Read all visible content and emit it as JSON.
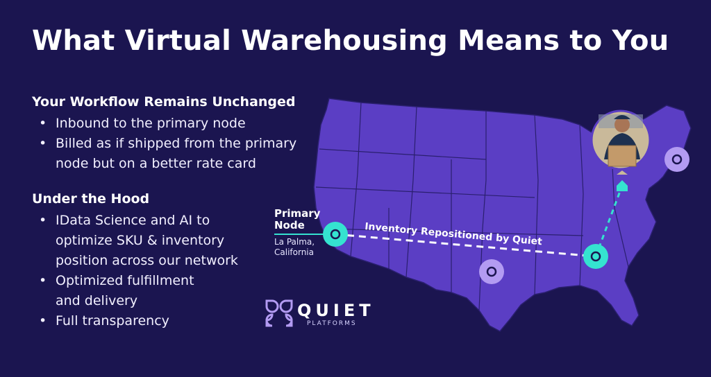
{
  "title": "What Virtual Warehousing Means to You",
  "workflow": {
    "heading": "Your Workflow Remains Unchanged",
    "items": [
      "Inbound to the primary node",
      "Billed as if shipped from the primary node but on a better rate card"
    ]
  },
  "hood": {
    "heading": "Under the Hood",
    "items": [
      "IData Science and AI to optimize SKU & inventory position across our network",
      "Optimized fulfillment and delivery",
      "Full transparency"
    ]
  },
  "map": {
    "primary_label": "Primary Node",
    "primary_location": "La Palma, California",
    "route_label": "Inventory Repositioned by Quiet"
  },
  "logo": {
    "name": "QUIET",
    "tagline": "PLATFORMS"
  },
  "colors": {
    "background": "#1b1550",
    "map_fill": "#5b3ec4",
    "teal": "#35e3d0",
    "lavender": "#b39bf2"
  }
}
